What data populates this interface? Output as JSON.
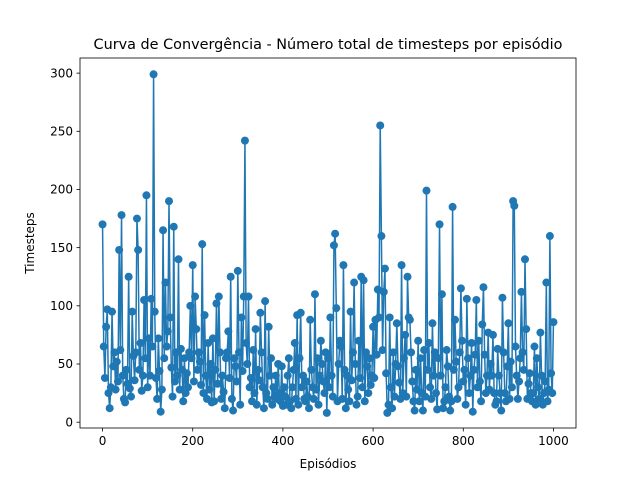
{
  "chart_data": {
    "type": "line",
    "title": "Curva de Convergência - Número total de timesteps por episódio",
    "xlabel": "Episódios",
    "ylabel": "Timesteps",
    "xlim": [
      -50,
      1050
    ],
    "ylim": [
      -5,
      313
    ],
    "xticks": [
      0,
      200,
      400,
      600,
      800,
      1000
    ],
    "yticks": [
      0,
      50,
      100,
      150,
      200,
      250,
      300
    ],
    "grid": false,
    "legend": "none",
    "marker": "circle",
    "color": "#1f77b4",
    "series": [
      {
        "values": [
          170,
          65,
          38,
          82,
          97,
          25,
          12,
          30,
          95,
          48,
          60,
          28,
          52,
          35,
          148,
          62,
          178,
          40,
          20,
          17,
          45,
          33,
          125,
          29,
          22,
          95,
          57,
          36,
          60,
          175,
          148,
          45,
          68,
          27,
          40,
          105,
          55,
          195,
          30,
          72,
          40,
          106,
          65,
          299,
          95,
          38,
          20,
          72,
          44,
          9,
          28,
          165,
          55,
          120,
          65,
          78,
          190,
          90,
          47,
          22,
          168,
          35,
          60,
          40,
          140,
          28,
          63,
          45,
          18,
          55,
          25,
          42,
          30,
          60,
          100,
          55,
          135,
          35,
          108,
          80,
          45,
          60,
          52,
          32,
          153,
          25,
          92,
          40,
          20,
          68,
          28,
          50,
          17,
          72,
          18,
          45,
          102,
          33,
          108,
          60,
          20,
          40,
          26,
          12,
          55,
          60,
          78,
          38,
          125,
          20,
          10,
          55,
          48,
          35,
          130,
          60,
          15,
          90,
          44,
          108,
          242,
          68,
          50,
          108,
          30,
          38,
          18,
          62,
          25,
          80,
          15,
          45,
          36,
          94,
          60,
          30,
          12,
          104,
          25,
          20,
          82,
          40,
          55,
          15,
          30,
          22,
          40,
          20,
          50,
          25,
          18,
          48,
          14,
          30,
          22,
          15,
          40,
          55,
          18,
          12,
          30,
          45,
          68,
          20,
          92,
          15,
          55,
          94,
          30,
          40,
          20,
          18,
          35,
          22,
          12,
          88,
          45,
          30,
          20,
          110,
          28,
          55,
          15,
          40,
          70,
          50,
          35,
          25,
          60,
          8,
          55,
          30,
          90,
          40,
          22,
          152,
          162,
          98,
          18,
          50,
          70,
          65,
          20,
          135,
          45,
          12,
          40,
          28,
          18,
          95,
          36,
          60,
          120,
          50,
          15,
          22,
          70,
          38,
          125,
          30,
          122,
          18,
          60,
          48,
          25,
          55,
          32,
          40,
          82,
          38,
          88,
          58,
          114,
          90,
          255,
          160,
          62,
          112,
          132,
          42,
          8,
          15,
          90,
          30,
          12,
          60,
          22,
          50,
          85,
          48,
          34,
          20,
          135,
          25,
          55,
          75,
          22,
          125,
          90,
          88,
          60,
          35,
          18,
          10,
          45,
          28,
          70,
          18,
          55,
          25,
          10,
          62,
          22,
          199,
          45,
          68,
          30,
          20,
          85,
          40,
          60,
          25,
          11,
          55,
          170,
          40,
          110,
          12,
          18,
          30,
          62,
          48,
          22,
          10,
          18,
          185,
          45,
          88,
          52,
          20,
          30,
          60,
          115,
          70,
          35,
          45,
          15,
          106,
          55,
          25,
          40,
          68,
          9,
          45,
          58,
          105,
          30,
          70,
          35,
          18,
          84,
          116,
          58,
          25,
          40,
          77,
          28,
          50,
          40,
          75,
          25,
          15,
          18,
          63,
          40,
          25,
          10,
          107,
          60,
          25,
          18,
          48,
          85,
          20,
          52,
          30,
          190,
          186,
          65,
          40,
          20,
          35,
          55,
          112,
          60,
          45,
          140,
          80,
          20,
          33,
          42,
          25,
          18,
          25,
          65,
          15,
          55,
          30,
          20,
          77,
          40,
          15,
          25,
          35,
          120,
          18,
          28,
          160,
          42,
          25,
          86
        ]
      }
    ]
  }
}
